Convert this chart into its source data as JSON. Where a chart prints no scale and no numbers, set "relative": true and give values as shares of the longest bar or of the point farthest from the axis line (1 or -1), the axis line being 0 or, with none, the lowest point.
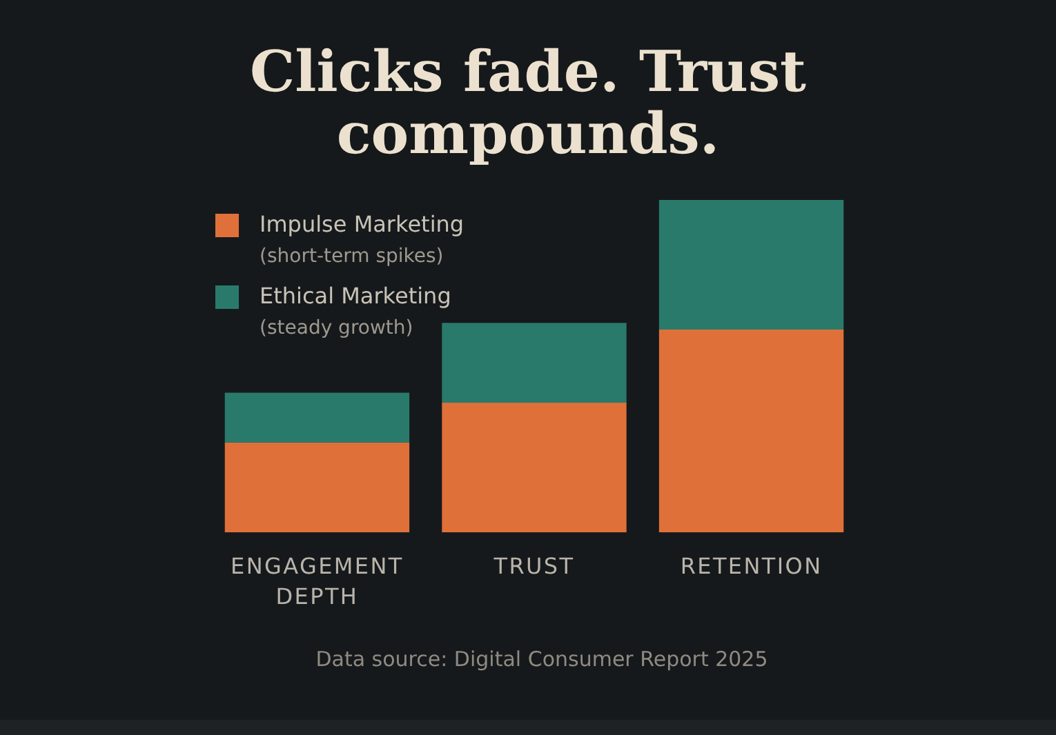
{
  "chart_data": {
    "type": "bar",
    "stacked": true,
    "relative": true,
    "title": "Clicks fade. Trust compounds.",
    "categories": [
      "ENGAGEMENT DEPTH",
      "TRUST",
      "RETENTION"
    ],
    "series": [
      {
        "name": "Impulse Marketing\n(short-term spikes)",
        "color": "#e0703a",
        "values": [
          0.27,
          0.39,
          0.61
        ]
      },
      {
        "name": "Ethical Marketing\n(steady growth)",
        "color": "#2a7a6c",
        "values": [
          0.15,
          0.24,
          0.39
        ]
      }
    ],
    "legend": "top left",
    "annotations": [
      "Data source: Digital Consumer Report 2025"
    ]
  }
}
